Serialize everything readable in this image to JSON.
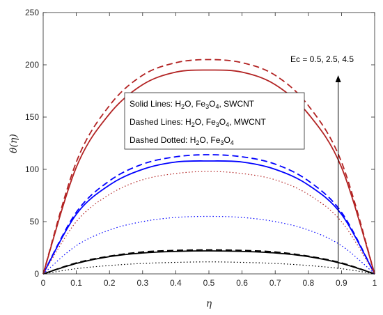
{
  "chart_data": {
    "type": "line",
    "xlabel": "η",
    "ylabel": "θ(η)",
    "xlim": [
      0,
      1
    ],
    "ylim": [
      0,
      250
    ],
    "xticks": [
      "0",
      "0.1",
      "0.2",
      "0.3",
      "0.4",
      "0.5",
      "0.6",
      "0.7",
      "0.8",
      "0.9",
      "1"
    ],
    "yticks": [
      "0",
      "50",
      "100",
      "150",
      "200",
      "250"
    ],
    "grid": false,
    "legend": {
      "placement": "center",
      "entries": [
        {
          "prefix": "Solid Lines: H",
          "sub1": "2",
          "mid": "O, Fe",
          "sub2": "3",
          "mid2": "O",
          "sub3": "4",
          "suffix": ", SWCNT"
        },
        {
          "prefix": "Dashed Lines: H",
          "sub1": "2",
          "mid": "O, Fe",
          "sub2": "3",
          "mid2": "O",
          "sub3": "4",
          "suffix": ", MWCNT"
        },
        {
          "prefix": "Dashed Dotted: H",
          "sub1": "2",
          "mid": "O, Fe",
          "sub2": "3",
          "mid2": "O",
          "sub3": "4",
          "suffix": ""
        }
      ]
    },
    "annotation": {
      "text": "Ec = 0.5, 2.5, 4.5",
      "arrow_x": 0.89,
      "arrow_from": 5,
      "arrow_to": 190
    },
    "x": [
      0,
      0.1,
      0.2,
      0.3,
      0.4,
      0.5,
      0.6,
      0.7,
      0.8,
      0.9,
      1
    ],
    "series": [
      {
        "style": "solid",
        "color": "#000000",
        "values": [
          0,
          10,
          16.5,
          20,
          21.5,
          22,
          21.5,
          20,
          16.5,
          10,
          0
        ]
      },
      {
        "style": "dashed",
        "color": "#000000",
        "values": [
          0,
          10.5,
          17,
          21,
          22.5,
          23,
          22.5,
          21,
          17,
          10.5,
          0
        ]
      },
      {
        "style": "dotted",
        "color": "#000000",
        "values": [
          0,
          5,
          8,
          10,
          11,
          11.5,
          11,
          10,
          8,
          5,
          0
        ]
      },
      {
        "style": "solid",
        "color": "#0000ff",
        "values": [
          0,
          57,
          85,
          100,
          107,
          108,
          107,
          100,
          85,
          57,
          0
        ]
      },
      {
        "style": "dashed",
        "color": "#0000ff",
        "values": [
          0,
          59,
          89,
          105,
          112,
          114,
          112,
          105,
          89,
          59,
          0
        ]
      },
      {
        "style": "dotted",
        "color": "#0000ff",
        "values": [
          0,
          27,
          42,
          50,
          54,
          55,
          54,
          50,
          42,
          27,
          0
        ]
      },
      {
        "style": "solid",
        "color": "#b22222",
        "values": [
          0,
          102,
          153,
          181,
          193,
          195,
          193,
          181,
          153,
          102,
          0
        ]
      },
      {
        "style": "dashed",
        "color": "#b22222",
        "values": [
          0,
          107,
          161,
          190,
          202,
          205,
          202,
          190,
          161,
          107,
          0
        ]
      },
      {
        "style": "dotted",
        "color": "#b22222",
        "values": [
          0,
          50,
          76,
          90,
          96,
          98,
          96,
          90,
          76,
          50,
          0
        ]
      }
    ]
  }
}
